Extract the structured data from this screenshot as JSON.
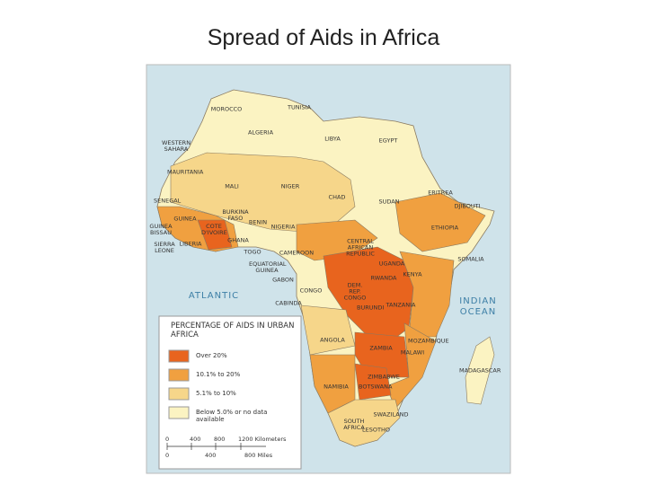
{
  "title": "Spread of Aids in Africa",
  "map": {
    "countries": [
      "MOROCCO",
      "TUNISIA",
      "ALGERIA",
      "LIBYA",
      "EGYPT",
      "WESTERN SAHARA",
      "MAURITANIA",
      "MALI",
      "NIGER",
      "CHAD",
      "SUDAN",
      "ERITREA",
      "DJIBOUTI",
      "ETHIOPIA",
      "SOMALIA",
      "SENEGAL",
      "GUINEA BISSAU",
      "GUINEA",
      "SIERRA LEONE",
      "LIBERIA",
      "COTE D'IVOIRE",
      "BURKINA FASO",
      "GHANA",
      "TOGO",
      "BENIN",
      "NIGERIA",
      "CAMEROON",
      "CENTRAL AFRICAN REPUBLIC",
      "EQUATORIAL GUINEA",
      "GABON",
      "CONGO",
      "CABINDA",
      "DEM. REP. CONGO",
      "UGANDA",
      "KENYA",
      "RWANDA",
      "BURUNDI",
      "TANZANIA",
      "ANGOLA",
      "ZAMBIA",
      "MALAWI",
      "MOZAMBIQUE",
      "ZIMBABWE",
      "NAMIBIA",
      "BOTSWANA",
      "MADAGASCAR",
      "SOUTH AFRICA",
      "SWAZILAND",
      "LESOTHO"
    ],
    "oceans": [
      "ATLANTIC",
      "INDIAN OCEAN"
    ]
  },
  "legend": {
    "title": "PERCENTAGE OF AIDS IN URBAN AFRICA",
    "items": [
      {
        "label": "Over 20%",
        "color": "#e8641e"
      },
      {
        "label": "10.1% to 20%",
        "color": "#f0a040"
      },
      {
        "label": "5.1% to 10%",
        "color": "#f6d68a"
      },
      {
        "label": "Below 5.0% or no data available",
        "color": "#fbf3c2"
      }
    ]
  },
  "scale": {
    "kilometers": [
      "0",
      "400",
      "800",
      "1200 Kilometers"
    ],
    "miles": [
      "0",
      "400",
      "800 Miles"
    ]
  }
}
